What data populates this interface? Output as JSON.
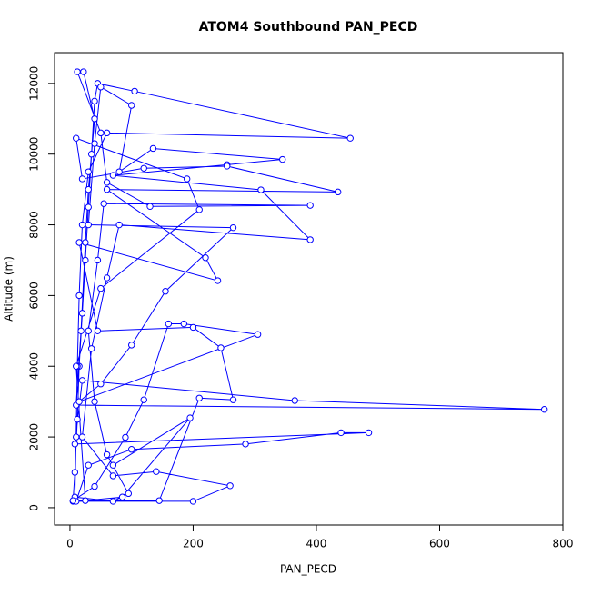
{
  "chart_data": {
    "type": "line",
    "title": "ATOM4 Southbound PAN_PECD",
    "x_label": "PAN_PECD",
    "y_label": "Altitude (m)",
    "color": "#0000ff",
    "x": [
      5,
      8,
      12,
      15,
      20,
      25,
      30,
      35,
      40,
      45,
      105,
      455,
      60,
      30,
      20,
      15,
      12,
      10,
      8,
      70,
      95,
      60,
      40,
      30,
      45,
      55,
      390,
      130,
      60,
      50,
      12,
      22,
      40,
      30,
      25,
      18,
      10,
      770,
      365,
      20,
      8,
      485,
      440,
      285,
      100,
      30,
      10,
      200,
      260,
      140,
      70,
      20,
      35,
      60,
      80,
      390,
      310,
      70,
      255,
      345,
      135,
      80,
      100,
      50,
      40,
      30,
      265,
      155,
      100,
      50,
      15,
      305,
      185,
      160,
      120,
      90,
      40,
      5,
      145,
      210,
      265,
      245,
      200,
      45,
      15,
      240,
      220,
      60,
      435,
      255,
      120,
      20,
      10,
      190,
      210,
      50,
      10,
      25,
      85,
      195,
      70
    ],
    "values": [
      180,
      1000,
      2500,
      4000,
      5500,
      7000,
      8500,
      10000,
      11500,
      12000,
      11780,
      10450,
      10600,
      9500,
      8000,
      6000,
      4000,
      2000,
      300,
      180,
      400,
      1500,
      3000,
      5000,
      7000,
      8600,
      8550,
      8520,
      9200,
      10600,
      12330,
      12330,
      11000,
      9000,
      7500,
      5000,
      2900,
      2780,
      3030,
      3600,
      1800,
      2120,
      2120,
      1800,
      1650,
      1200,
      180,
      180,
      620,
      1020,
      900,
      2000,
      4500,
      6500,
      8000,
      7580,
      8990,
      9400,
      9700,
      9850,
      10160,
      9500,
      11380,
      11900,
      10300,
      8000,
      7920,
      6120,
      4600,
      3500,
      3000,
      4900,
      5200,
      5200,
      3050,
      1990,
      600,
      200,
      200,
      3100,
      3050,
      4520,
      5100,
      5000,
      7500,
      6420,
      7070,
      9000,
      8930,
      9660,
      9600,
      9300,
      10450,
      9300,
      8430,
      6200,
      4000,
      200,
      300,
      2540,
      1200
    ],
    "xlim": [
      -25,
      800
    ],
    "ylim": [
      -490,
      12870
    ],
    "xticks": [
      0,
      200,
      400,
      600,
      800
    ],
    "yticks": [
      0,
      2000,
      4000,
      6000,
      8000,
      10000,
      12000
    ]
  }
}
